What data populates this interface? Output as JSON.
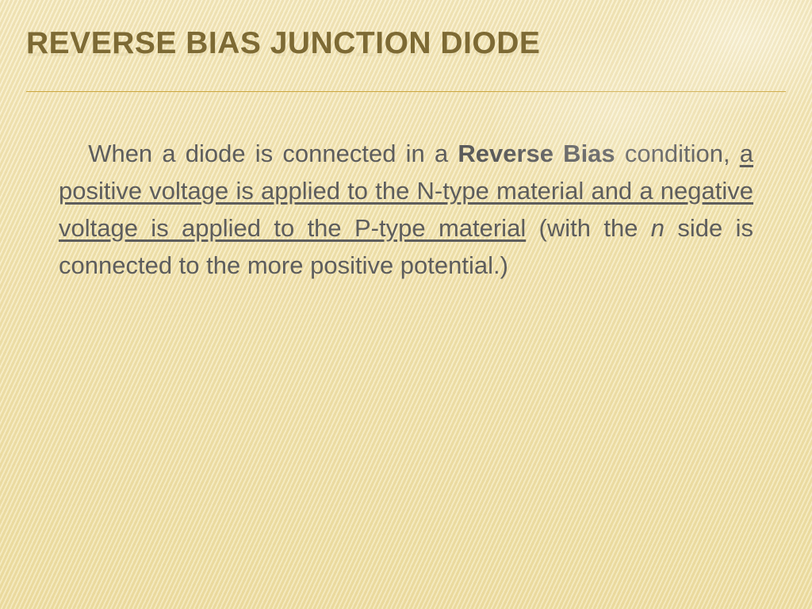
{
  "slide": {
    "background_gradient": [
      "#f7ecc2",
      "#f4e7b4",
      "#f1e2a7"
    ],
    "stripe_colors": [
      "rgba(255,255,255,0.25)",
      "rgba(200,175,110,0.18)"
    ],
    "title": {
      "text": "REVERSE BIAS JUNCTION DIODE",
      "color": "#7d6a34",
      "font_size_pt": 29,
      "font_weight": 700,
      "uppercase": true,
      "has_reflection": true
    },
    "divider_color": "#cba63f",
    "body": {
      "color": "#5d5d5d",
      "font_size_pt": 23,
      "line_height": 1.52,
      "justify": true,
      "indent_em": 1.2,
      "runs": [
        {
          "text": "When a diode is connected in a ",
          "style": "normal"
        },
        {
          "text": "Reverse Bias",
          "style": "bold"
        },
        {
          "text": " condition, ",
          "style": "normal"
        },
        {
          "text": "a positive voltage is applied to the N-type material and a negative voltage is applied to the P-type material",
          "style": "underline"
        },
        {
          "text": " (with the ",
          "style": "normal"
        },
        {
          "text": "n",
          "style": "italic"
        },
        {
          "text": " side is connected to the more positive potential.)",
          "style": "normal"
        }
      ]
    }
  }
}
